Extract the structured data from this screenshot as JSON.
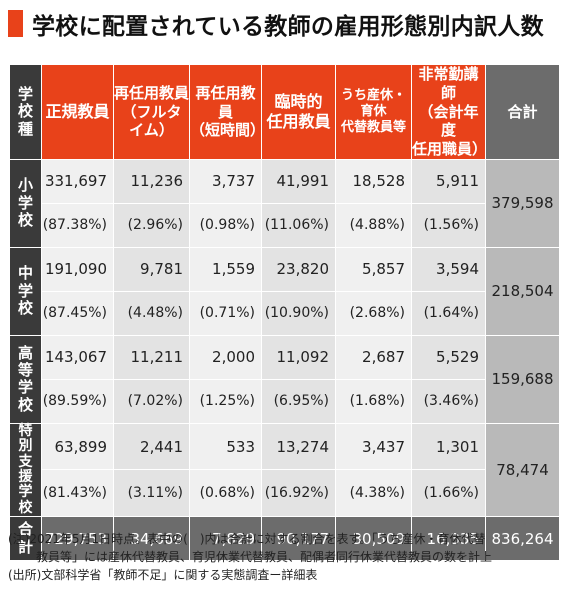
{
  "title": "学校に配置されている教師の雇用形態別内訳人数",
  "header": {
    "school_type": "学校種",
    "regular": "正規教員",
    "reemp_full": [
      "再任用教員",
      "（フルタイム）"
    ],
    "reemp_short": [
      "再任用教員",
      "（短時間）"
    ],
    "temporary": [
      "臨時的",
      "任用教員"
    ],
    "leave_sub": [
      "うち産休・育休",
      "代替教員等"
    ],
    "parttime": [
      "非常勤講師",
      "（会計年度",
      "任用職員）"
    ],
    "total": "合計"
  },
  "rows": [
    {
      "label": "小学校",
      "counts": [
        "331,697",
        "11,236",
        "3,737",
        "41,991",
        "18,528",
        "5,911"
      ],
      "pcts": [
        "(87.38%)",
        "(2.96%)",
        "(0.98%)",
        "(11.06%)",
        "(4.88%)",
        "(1.56%)"
      ],
      "total": "379,598"
    },
    {
      "label": "中学校",
      "counts": [
        "191,090",
        "9,781",
        "1,559",
        "23,820",
        "5,857",
        "3,594"
      ],
      "pcts": [
        "(87.45%)",
        "(4.48%)",
        "(0.71%)",
        "(10.90%)",
        "(2.68%)",
        "(1.64%)"
      ],
      "total": "218,504"
    },
    {
      "label": "高等学校",
      "counts": [
        "143,067",
        "11,211",
        "2,000",
        "11,092",
        "2,687",
        "5,529"
      ],
      "pcts": [
        "(89.59%)",
        "(7.02%)",
        "(1.25%)",
        "(6.95%)",
        "(1.68%)",
        "(3.46%)"
      ],
      "total": "159,688"
    },
    {
      "label": "特別支援学校",
      "counts": [
        "63,899",
        "2,441",
        "533",
        "13,274",
        "3,437",
        "1,301"
      ],
      "pcts": [
        "(81.43%)",
        "(3.11%)",
        "(0.68%)",
        "(16.92%)",
        "(4.38%)",
        "(1.66%)"
      ],
      "total": "78,474"
    }
  ],
  "grand": {
    "label": "合計",
    "values": [
      "729,753",
      "34,669",
      "7,829",
      "90,177",
      "30,509",
      "16,335",
      "836,264"
    ]
  },
  "notes": [
    "(注)2021年5月1日時点。表中の(　)内は合計に対する割合を表す。「うち産休・育休代替",
    "教員等」には産休代替教員、育児休業代替教員、配偶者同行休業代替教員の数を計上",
    "(出所)文部科学省「教師不足」に関する実態調査ー詳細表"
  ]
}
